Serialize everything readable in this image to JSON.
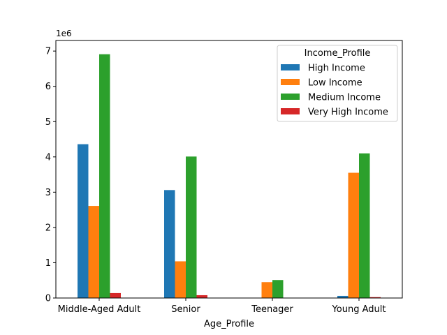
{
  "chart_data": {
    "type": "bar",
    "categories": [
      "Middle-Aged Adult",
      "Senior",
      "Teenager",
      "Young Adult"
    ],
    "series": [
      {
        "name": "High Income",
        "color": "#1f77b4",
        "values": [
          4360000,
          3060000,
          0,
          60000
        ]
      },
      {
        "name": "Low Income",
        "color": "#ff7f0e",
        "values": [
          2610000,
          1040000,
          450000,
          3550000
        ]
      },
      {
        "name": "Medium Income",
        "color": "#2ca02c",
        "values": [
          6910000,
          4010000,
          510000,
          4100000
        ]
      },
      {
        "name": "Very High Income",
        "color": "#d62728",
        "values": [
          140000,
          80000,
          0,
          25000
        ]
      }
    ],
    "xlabel": "Age_Profile",
    "ylabel": "",
    "ylim": [
      0,
      7300000
    ],
    "yticks": [
      0,
      1,
      2,
      3,
      4,
      5,
      6,
      7
    ],
    "y_multiplier": "1e6",
    "y_scale": 1000000,
    "legend_title": "Income_Profile",
    "legend_position": "top-right",
    "grid": false
  }
}
